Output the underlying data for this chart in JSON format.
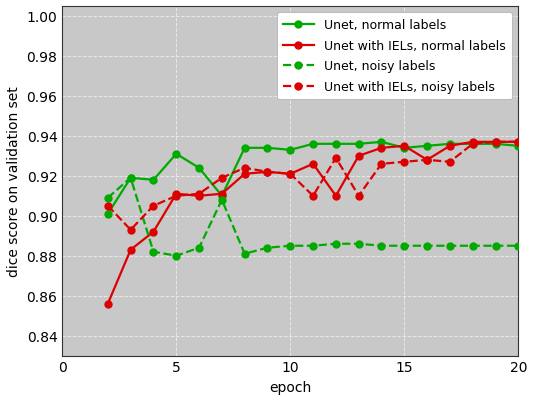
{
  "title": "",
  "xlabel": "epoch",
  "ylabel": "dice score on validation set",
  "xlim": [
    1,
    20
  ],
  "ylim": [
    0.83,
    1.005
  ],
  "yticks": [
    0.84,
    0.86,
    0.88,
    0.9,
    0.92,
    0.94,
    0.96,
    0.98,
    1.0
  ],
  "xticks": [
    0,
    5,
    10,
    15,
    20
  ],
  "series": [
    {
      "label": "Unet, normal labels",
      "color": "#00aa00",
      "linestyle": "-",
      "marker": "o",
      "x": [
        2,
        3,
        4,
        5,
        6,
        7,
        8,
        9,
        10,
        11,
        12,
        13,
        14,
        15,
        16,
        17,
        18,
        19,
        20
      ],
      "y": [
        0.901,
        0.919,
        0.918,
        0.931,
        0.924,
        0.91,
        0.934,
        0.934,
        0.933,
        0.936,
        0.936,
        0.936,
        0.937,
        0.934,
        0.935,
        0.936,
        0.936,
        0.936,
        0.935
      ]
    },
    {
      "label": "Unet with IELs, normal labels",
      "color": "#dd0000",
      "linestyle": "-",
      "marker": "o",
      "x": [
        2,
        3,
        4,
        5,
        6,
        7,
        8,
        9,
        10,
        11,
        12,
        13,
        14,
        15,
        16,
        17,
        18,
        19,
        20
      ],
      "y": [
        0.856,
        0.883,
        0.892,
        0.911,
        0.91,
        0.911,
        0.921,
        0.922,
        0.921,
        0.926,
        0.91,
        0.93,
        0.934,
        0.935,
        0.928,
        0.935,
        0.937,
        0.937,
        0.937
      ]
    },
    {
      "label": "Unet, noisy labels",
      "color": "#00aa00",
      "linestyle": "--",
      "marker": "o",
      "x": [
        2,
        3,
        4,
        5,
        6,
        7,
        8,
        9,
        10,
        11,
        12,
        13,
        14,
        15,
        16,
        17,
        18,
        19,
        20
      ],
      "y": [
        0.909,
        0.919,
        0.882,
        0.88,
        0.884,
        0.908,
        0.881,
        0.884,
        0.885,
        0.885,
        0.886,
        0.886,
        0.885,
        0.885,
        0.885,
        0.885,
        0.885,
        0.885,
        0.885
      ]
    },
    {
      "label": "Unet with IELs, noisy labels",
      "color": "#dd0000",
      "linestyle": "--",
      "marker": "o",
      "x": [
        2,
        3,
        4,
        5,
        6,
        7,
        8,
        9,
        10,
        11,
        12,
        13,
        14,
        15,
        16,
        17,
        18,
        19,
        20
      ],
      "y": [
        0.905,
        0.893,
        0.905,
        0.91,
        0.911,
        0.919,
        0.924,
        0.922,
        0.921,
        0.91,
        0.929,
        0.91,
        0.926,
        0.927,
        0.928,
        0.927,
        0.936,
        0.937,
        0.937
      ]
    }
  ],
  "background_color": "#c8c8c8",
  "grid_color": "#e8e8e8",
  "legend_fontsize": 9,
  "axis_label_fontsize": 10,
  "tick_fontsize": 10,
  "linewidth": 1.6,
  "markersize": 5,
  "legend_handlelength": 2.5,
  "legend_labelspacing": 0.6
}
